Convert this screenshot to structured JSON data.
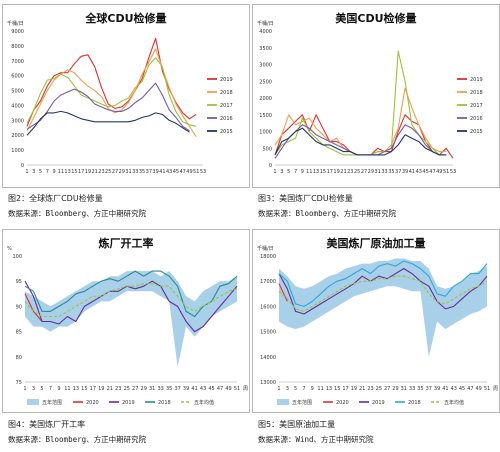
{
  "captions": [
    {
      "figure": "图2：全球炼厂CDU检修量",
      "source": "数据来源：Bloomberg、方正中期研究院"
    },
    {
      "figure": "图3：美国炼厂CDU检修量",
      "source": "数据来源：Bloomberg、方正中期研究院"
    },
    {
      "figure": "图4：美国炼厂开工率",
      "source": "数据来源：Bloomberg、方正中期研究院"
    },
    {
      "figure": "图5：美国原油加工量",
      "source": "数据来源：Wind、方正中期研究院"
    }
  ],
  "chart_data": [
    {
      "type": "line",
      "title": "全球CDU检修量",
      "y_unit": "千桶/日",
      "x_unit": "",
      "ylim": [
        0,
        9000
      ],
      "yticks": [
        0,
        1000,
        2000,
        3000,
        4000,
        5000,
        6000,
        7000,
        8000,
        9000
      ],
      "x": [
        1,
        3,
        5,
        7,
        9,
        11,
        13,
        15,
        17,
        19,
        21,
        23,
        25,
        27,
        29,
        31,
        33,
        35,
        37,
        39,
        41,
        43,
        45,
        47,
        49,
        51,
        53
      ],
      "legend_position": "right",
      "series": [
        {
          "name": "2019",
          "color": "#e03030",
          "values": [
            2600,
            3700,
            4300,
            5300,
            6000,
            6200,
            6200,
            6800,
            7300,
            7400,
            6600,
            5200,
            4100,
            3800,
            3900,
            4300,
            5000,
            5800,
            7200,
            8500,
            6300,
            5100,
            4200,
            3500,
            3100,
            3400,
            null
          ]
        },
        {
          "name": "2018",
          "color": "#f0a050",
          "values": [
            2300,
            3200,
            4100,
            5000,
            5700,
            6100,
            6400,
            6200,
            5700,
            5300,
            5000,
            4600,
            3800,
            3500,
            3700,
            4200,
            5000,
            6100,
            6900,
            7800,
            6500,
            5200,
            4100,
            3300,
            2600,
            1900,
            null
          ]
        },
        {
          "name": "2017",
          "color": "#9cc23a",
          "values": [
            2800,
            3700,
            4800,
            5700,
            5800,
            6100,
            5900,
            5300,
            4700,
            4500,
            4300,
            4100,
            3900,
            4000,
            4300,
            4500,
            5200,
            5600,
            6700,
            7200,
            6600,
            4700,
            3600,
            2900,
            2700,
            2600,
            null
          ]
        },
        {
          "name": "2016",
          "color": "#7a5aa8",
          "values": [
            2400,
            2700,
            3000,
            3600,
            4300,
            4700,
            4900,
            5100,
            4900,
            4600,
            4100,
            3900,
            3700,
            3600,
            3600,
            3800,
            4200,
            4500,
            5000,
            5500,
            4700,
            3700,
            3200,
            2600,
            2300,
            null,
            null
          ]
        },
        {
          "name": "2015",
          "color": "#1f3a68",
          "values": [
            2000,
            2500,
            3100,
            3500,
            3500,
            3600,
            3500,
            3300,
            3100,
            3000,
            2900,
            2900,
            2900,
            2900,
            2900,
            2900,
            3000,
            3200,
            3300,
            3500,
            3400,
            3000,
            2800,
            2500,
            2200,
            null,
            null
          ]
        }
      ]
    },
    {
      "type": "line",
      "title": "美国CDU检修量",
      "y_unit": "千桶/日",
      "x_unit": "",
      "ylim": [
        0,
        4000
      ],
      "yticks": [
        0,
        500,
        1000,
        1500,
        2000,
        2500,
        3000,
        3500,
        4000
      ],
      "x": [
        1,
        3,
        5,
        7,
        9,
        11,
        13,
        15,
        17,
        19,
        21,
        23,
        25,
        27,
        29,
        31,
        33,
        35,
        37,
        39,
        41,
        43,
        45,
        47,
        49,
        51,
        53
      ],
      "legend_position": "right",
      "series": [
        {
          "name": "2019",
          "color": "#e03030",
          "values": [
            300,
            900,
            1100,
            1300,
            1500,
            1000,
            1500,
            1100,
            700,
            700,
            600,
            400,
            300,
            300,
            300,
            500,
            400,
            400,
            1000,
            1500,
            1300,
            1200,
            700,
            400,
            300,
            500,
            200
          ]
        },
        {
          "name": "2018",
          "color": "#f0a050",
          "values": [
            600,
            900,
            1500,
            1200,
            1300,
            1400,
            1100,
            900,
            700,
            800,
            500,
            400,
            300,
            300,
            300,
            400,
            400,
            600,
            1100,
            2300,
            1700,
            1200,
            800,
            500,
            400,
            400,
            null
          ]
        },
        {
          "name": "2017",
          "color": "#9cc23a",
          "values": [
            300,
            600,
            700,
            800,
            1400,
            1000,
            800,
            600,
            500,
            400,
            300,
            300,
            300,
            300,
            300,
            400,
            400,
            500,
            3400,
            2500,
            1200,
            900,
            700,
            500,
            300,
            300,
            null
          ]
        },
        {
          "name": "2016",
          "color": "#7a5aa8",
          "values": [
            200,
            500,
            800,
            1000,
            1200,
            1100,
            900,
            800,
            700,
            600,
            500,
            400,
            300,
            300,
            300,
            300,
            400,
            500,
            900,
            1200,
            1100,
            900,
            600,
            400,
            300,
            300,
            null
          ]
        },
        {
          "name": "2015",
          "color": "#1f3a68",
          "values": [
            300,
            700,
            800,
            1000,
            1100,
            900,
            700,
            600,
            600,
            500,
            400,
            400,
            300,
            300,
            300,
            300,
            300,
            400,
            600,
            900,
            800,
            700,
            500,
            400,
            300,
            300,
            null
          ]
        }
      ]
    },
    {
      "type": "line",
      "title": "炼厂开工率",
      "y_unit": "%",
      "x_unit": "周",
      "ylim": [
        75,
        100
      ],
      "yticks": [
        75,
        80,
        85,
        90,
        95,
        100
      ],
      "x": [
        1,
        3,
        5,
        7,
        9,
        11,
        13,
        15,
        17,
        19,
        21,
        23,
        25,
        27,
        29,
        31,
        33,
        35,
        37,
        39,
        41,
        43,
        45,
        47,
        49,
        51
      ],
      "legend_position": "bottom",
      "band": {
        "name": "五年范围",
        "color": "#a8d0e8",
        "low": [
          88,
          86,
          86,
          85,
          86,
          86,
          87,
          89,
          90,
          91,
          91,
          92,
          93,
          93,
          93,
          93,
          92,
          91,
          78,
          86,
          84,
          86,
          88,
          89,
          90,
          91
        ],
        "high": [
          93,
          92,
          91,
          90,
          91,
          92,
          93,
          94,
          95,
          95,
          96,
          96,
          97,
          97,
          97,
          97,
          96,
          97,
          95,
          92,
          91,
          93,
          94,
          95,
          95,
          96
        ]
      },
      "series": [
        {
          "name": "2020",
          "color": "#e03030",
          "values": [
            92.5,
            89,
            87,
            null,
            null,
            null,
            null,
            null,
            null,
            null,
            null,
            null,
            null,
            null,
            null,
            null,
            null,
            null,
            null,
            null,
            null,
            null,
            null,
            null,
            null,
            null
          ]
        },
        {
          "name": "2019",
          "color": "#6a2a9a",
          "values": [
            95,
            92,
            87,
            87,
            86.5,
            88,
            87,
            90,
            91,
            92,
            93,
            93,
            94,
            93.5,
            94,
            95,
            94,
            91,
            90,
            87,
            85,
            86,
            88,
            90,
            92,
            94
          ]
        },
        {
          "name": "2018",
          "color": "#2a8a9a",
          "values": [
            94,
            93,
            89,
            89,
            90,
            91,
            92.5,
            93,
            94,
            95,
            95.5,
            95,
            96,
            97,
            96,
            97,
            97,
            96,
            94,
            89,
            88,
            90,
            91,
            94,
            94.5,
            96
          ]
        },
        {
          "name": "五年均值",
          "color": "#9cc23a",
          "dashed": true,
          "values": [
            91,
            89,
            88,
            88,
            88,
            89,
            90,
            91,
            92,
            92,
            93,
            93.5,
            94,
            94,
            94.5,
            94.5,
            94,
            94,
            92,
            90,
            89,
            90,
            91,
            92,
            93,
            93.5
          ]
        }
      ]
    },
    {
      "type": "line",
      "title": "美国炼厂原油加工量",
      "y_unit": "千桶/日",
      "x_unit": "周",
      "ylim": [
        13000,
        18000
      ],
      "yticks": [
        13000,
        14000,
        15000,
        16000,
        17000,
        18000
      ],
      "x": [
        1,
        3,
        5,
        7,
        9,
        11,
        13,
        15,
        17,
        19,
        21,
        23,
        25,
        27,
        29,
        31,
        33,
        35,
        37,
        39,
        41,
        43,
        45,
        47,
        49,
        51
      ],
      "legend_position": "bottom",
      "band": {
        "name": "五年范围",
        "color": "#a8d0e8",
        "low": [
          15400,
          15200,
          15100,
          15200,
          15400,
          15600,
          15800,
          16000,
          16200,
          16400,
          16500,
          16600,
          16700,
          16800,
          16800,
          16700,
          16600,
          16600,
          14000,
          15400,
          15100,
          15300,
          15500,
          15700,
          15800,
          16000
        ],
        "high": [
          17500,
          17200,
          16800,
          16700,
          16800,
          17000,
          17200,
          17300,
          17500,
          17600,
          17700,
          17700,
          17800,
          17800,
          17900,
          17900,
          17800,
          17800,
          17500,
          16800,
          16700,
          16800,
          17000,
          17300,
          17400,
          17600
        ]
      },
      "series": [
        {
          "name": "2020",
          "color": "#e03030",
          "values": [
            16900,
            16200,
            null,
            null,
            null,
            null,
            null,
            null,
            null,
            null,
            null,
            null,
            null,
            null,
            null,
            null,
            null,
            null,
            null,
            null,
            null,
            null,
            null,
            null,
            null,
            null
          ]
        },
        {
          "name": "2019",
          "color": "#6a2a9a",
          "values": [
            17300,
            16700,
            15800,
            15700,
            15900,
            16100,
            16300,
            16500,
            16700,
            16900,
            17200,
            17000,
            17200,
            17100,
            17300,
            17500,
            17300,
            17000,
            16800,
            16200,
            15900,
            16000,
            16300,
            16600,
            16800,
            17200
          ]
        },
        {
          "name": "2018",
          "color": "#2aa8d8",
          "values": [
            17300,
            17000,
            16100,
            16000,
            16200,
            16500,
            16800,
            17000,
            17100,
            17300,
            17500,
            17300,
            17600,
            17700,
            17600,
            17800,
            17700,
            17500,
            17200,
            16500,
            16400,
            16800,
            17000,
            17300,
            17300,
            17700
          ]
        },
        {
          "name": "五年均值",
          "color": "#9cc23a",
          "dashed": true,
          "values": [
            16600,
            16300,
            15900,
            15800,
            16000,
            16200,
            16400,
            16600,
            16800,
            16900,
            17000,
            17000,
            17100,
            17100,
            17200,
            17200,
            17100,
            17000,
            16500,
            16200,
            16100,
            16300,
            16500,
            16700,
            16800,
            17000
          ]
        }
      ]
    }
  ]
}
